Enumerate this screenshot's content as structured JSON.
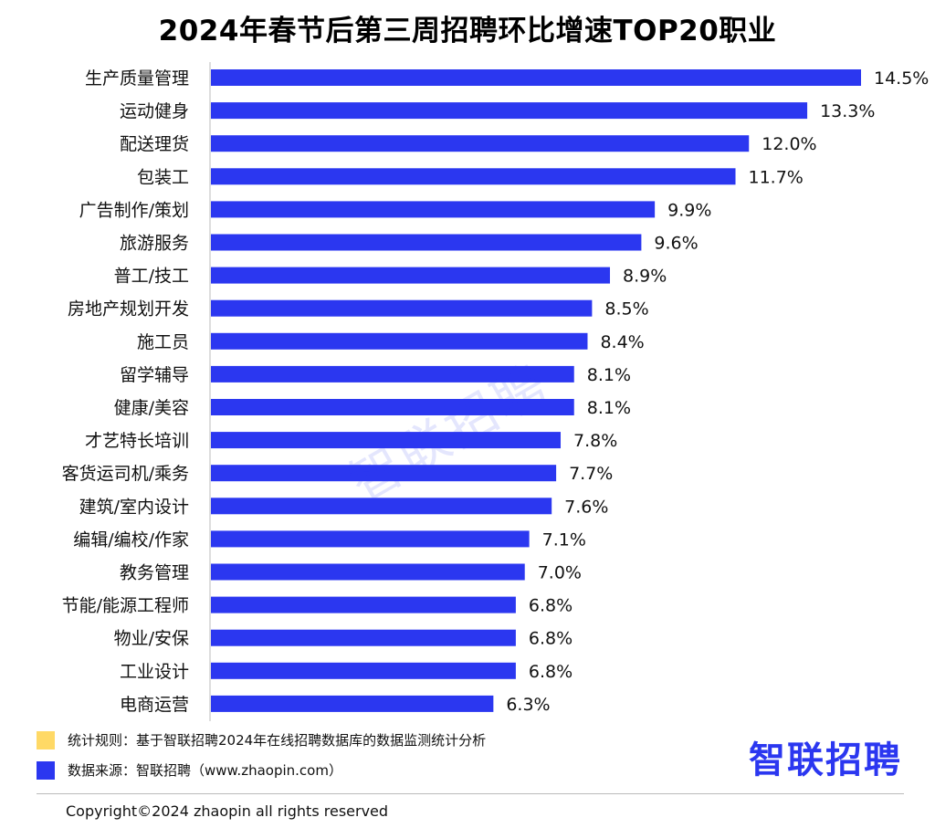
{
  "chart_data": {
    "type": "bar",
    "orientation": "horizontal",
    "title": "2024年春节后第三周招聘环比增速TOP20职业",
    "categories": [
      "生产质量管理",
      "运动健身",
      "配送理货",
      "包装工",
      "广告制作/策划",
      "旅游服务",
      "普工/技工",
      "房地产规划开发",
      "施工员",
      "留学辅导",
      "健康/美容",
      "才艺特长培训",
      "客货运司机/乘务",
      "建筑/室内设计",
      "编辑/编校/作家",
      "教务管理",
      "节能/能源工程师",
      "物业/安保",
      "工业设计",
      "电商运营"
    ],
    "values": [
      14.5,
      13.3,
      12.0,
      11.7,
      9.9,
      9.6,
      8.9,
      8.5,
      8.4,
      8.1,
      8.1,
      7.8,
      7.7,
      7.6,
      7.1,
      7.0,
      6.8,
      6.8,
      6.8,
      6.3
    ],
    "value_labels": [
      "14.5%",
      "13.3%",
      "12.0%",
      "11.7%",
      "9.9%",
      "9.6%",
      "8.9%",
      "8.5%",
      "8.4%",
      "8.1%",
      "8.1%",
      "7.8%",
      "7.7%",
      "7.6%",
      "7.1%",
      "7.0%",
      "6.8%",
      "6.8%",
      "6.8%",
      "6.3%"
    ],
    "xlim": [
      0,
      14.5
    ],
    "bar_color": "#2b37f0",
    "grid": false,
    "legend": "bottom-left"
  },
  "watermark": "智联招聘",
  "legend": [
    {
      "label": "统计规则：基于智联招聘2024年在线招聘数据库的数据监测统计分析",
      "color": "#ffd966"
    },
    {
      "label": "数据来源：智联招聘（www.zhaopin.com）",
      "color": "#2b37f0"
    }
  ],
  "brand": "智联招聘",
  "copyright": "Copyright©2024 zhaopin all rights reserved"
}
